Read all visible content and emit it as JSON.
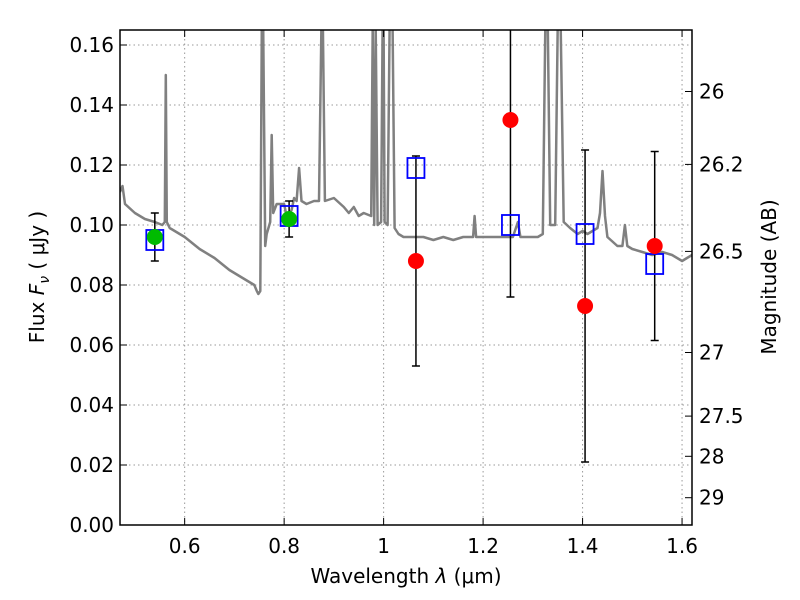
{
  "chart_data": {
    "type": "scatter",
    "xlabel_prefix": "Wavelength  ",
    "xlabel_symbol": "λ",
    "xlabel_unit": " (μm)",
    "ylabel_prefix": "Flux  ",
    "ylabel_symbol": "F",
    "ylabel_sub": "ν",
    "ylabel_unit": "  ( μJy )",
    "y2label": "Magnitude (AB)",
    "xlim": [
      0.47,
      1.62
    ],
    "ylim": [
      0.0,
      0.165
    ],
    "grid": true,
    "x_ticks": [
      {
        "value": 0.6,
        "label": "0.6"
      },
      {
        "value": 0.8,
        "label": "0.8"
      },
      {
        "value": 1.0,
        "label": "1"
      },
      {
        "value": 1.2,
        "label": "1.2"
      },
      {
        "value": 1.4,
        "label": "1.4"
      },
      {
        "value": 1.6,
        "label": "1.6"
      }
    ],
    "y_ticks": [
      {
        "value": 0.0,
        "label": "0.00"
      },
      {
        "value": 0.02,
        "label": "0.02"
      },
      {
        "value": 0.04,
        "label": "0.04"
      },
      {
        "value": 0.06,
        "label": "0.06"
      },
      {
        "value": 0.08,
        "label": "0.08"
      },
      {
        "value": 0.1,
        "label": "0.10"
      },
      {
        "value": 0.12,
        "label": "0.12"
      },
      {
        "value": 0.14,
        "label": "0.14"
      },
      {
        "value": 0.16,
        "label": "0.16"
      }
    ],
    "y2_ticks": [
      {
        "label": "26",
        "flux": 0.1445
      },
      {
        "label": "26.2",
        "flux": 0.1202
      },
      {
        "label": "26.5",
        "flux": 0.0912
      },
      {
        "label": "27",
        "flux": 0.0575
      },
      {
        "label": "27.5",
        "flux": 0.0363
      },
      {
        "label": "28",
        "flux": 0.0229
      },
      {
        "label": "29",
        "flux": 0.0091
      }
    ],
    "colors": {
      "model": "#808080",
      "model_box": "#0000ff",
      "observed_green": "#00bb00",
      "observed_red": "#ff0000",
      "errorbar": "#000000",
      "grid": "#9a9a9a"
    },
    "model_spectrum": [
      [
        0.47,
        0.111
      ],
      [
        0.475,
        0.113
      ],
      [
        0.48,
        0.107
      ],
      [
        0.5,
        0.104
      ],
      [
        0.52,
        0.102
      ],
      [
        0.54,
        0.101
      ],
      [
        0.555,
        0.1
      ],
      [
        0.56,
        0.101
      ],
      [
        0.562,
        0.15
      ],
      [
        0.564,
        0.101
      ],
      [
        0.57,
        0.099
      ],
      [
        0.6,
        0.096
      ],
      [
        0.63,
        0.092
      ],
      [
        0.66,
        0.089
      ],
      [
        0.69,
        0.085
      ],
      [
        0.72,
        0.082
      ],
      [
        0.74,
        0.08
      ],
      [
        0.745,
        0.078
      ],
      [
        0.748,
        0.077
      ],
      [
        0.752,
        0.078
      ],
      [
        0.755,
        0.166
      ],
      [
        0.758,
        0.166
      ],
      [
        0.762,
        0.093
      ],
      [
        0.765,
        0.097
      ],
      [
        0.772,
        0.101
      ],
      [
        0.775,
        0.13
      ],
      [
        0.778,
        0.104
      ],
      [
        0.785,
        0.107
      ],
      [
        0.795,
        0.107
      ],
      [
        0.8,
        0.107
      ],
      [
        0.805,
        0.103
      ],
      [
        0.81,
        0.104
      ],
      [
        0.815,
        0.105
      ],
      [
        0.82,
        0.109
      ],
      [
        0.825,
        0.108
      ],
      [
        0.83,
        0.119
      ],
      [
        0.835,
        0.108
      ],
      [
        0.845,
        0.107
      ],
      [
        0.86,
        0.108
      ],
      [
        0.87,
        0.108
      ],
      [
        0.875,
        0.166
      ],
      [
        0.878,
        0.166
      ],
      [
        0.882,
        0.108
      ],
      [
        0.9,
        0.109
      ],
      [
        0.92,
        0.106
      ],
      [
        0.93,
        0.104
      ],
      [
        0.94,
        0.106
      ],
      [
        0.95,
        0.103
      ],
      [
        0.96,
        0.104
      ],
      [
        0.975,
        0.103
      ],
      [
        0.978,
        0.166
      ],
      [
        0.981,
        0.1
      ],
      [
        0.984,
        0.166
      ],
      [
        0.988,
        0.1
      ],
      [
        0.995,
        0.101
      ],
      [
        0.998,
        0.166
      ],
      [
        1.0,
        0.166
      ],
      [
        1.002,
        0.101
      ],
      [
        1.008,
        0.1
      ],
      [
        1.012,
        0.166
      ],
      [
        1.018,
        0.166
      ],
      [
        1.022,
        0.099
      ],
      [
        1.03,
        0.097
      ],
      [
        1.04,
        0.096
      ],
      [
        1.06,
        0.096
      ],
      [
        1.08,
        0.096
      ],
      [
        1.1,
        0.095
      ],
      [
        1.12,
        0.096
      ],
      [
        1.14,
        0.095
      ],
      [
        1.16,
        0.096
      ],
      [
        1.18,
        0.096
      ],
      [
        1.183,
        0.103
      ],
      [
        1.186,
        0.096
      ],
      [
        1.2,
        0.096
      ],
      [
        1.23,
        0.096
      ],
      [
        1.25,
        0.096
      ],
      [
        1.26,
        0.096
      ],
      [
        1.27,
        0.101
      ],
      [
        1.275,
        0.096
      ],
      [
        1.29,
        0.096
      ],
      [
        1.31,
        0.096
      ],
      [
        1.32,
        0.097
      ],
      [
        1.325,
        0.166
      ],
      [
        1.33,
        0.166
      ],
      [
        1.335,
        0.1
      ],
      [
        1.345,
        0.1
      ],
      [
        1.35,
        0.166
      ],
      [
        1.356,
        0.166
      ],
      [
        1.362,
        0.101
      ],
      [
        1.375,
        0.099
      ],
      [
        1.39,
        0.097
      ],
      [
        1.4,
        0.098
      ],
      [
        1.41,
        0.097
      ],
      [
        1.43,
        0.099
      ],
      [
        1.435,
        0.104
      ],
      [
        1.44,
        0.118
      ],
      [
        1.445,
        0.103
      ],
      [
        1.45,
        0.096
      ],
      [
        1.47,
        0.093
      ],
      [
        1.48,
        0.093
      ],
      [
        1.485,
        0.1
      ],
      [
        1.49,
        0.093
      ],
      [
        1.5,
        0.092
      ],
      [
        1.52,
        0.091
      ],
      [
        1.54,
        0.09
      ],
      [
        1.56,
        0.091
      ],
      [
        1.58,
        0.09
      ],
      [
        1.6,
        0.088
      ],
      [
        1.61,
        0.089
      ],
      [
        1.62,
        0.09
      ]
    ],
    "model_points": [
      {
        "x": 0.54,
        "y": 0.095
      },
      {
        "x": 0.81,
        "y": 0.103
      },
      {
        "x": 1.065,
        "y": 0.119
      },
      {
        "x": 1.255,
        "y": 0.1
      },
      {
        "x": 1.405,
        "y": 0.097
      },
      {
        "x": 1.545,
        "y": 0.087
      }
    ],
    "observed_points": [
      {
        "x": 0.54,
        "y": 0.096,
        "err": 0.008,
        "color": "green"
      },
      {
        "x": 0.81,
        "y": 0.102,
        "err": 0.006,
        "color": "green"
      },
      {
        "x": 1.065,
        "y": 0.088,
        "err": 0.035,
        "color": "red"
      },
      {
        "x": 1.255,
        "y": 0.135,
        "err": 0.059,
        "color": "red"
      },
      {
        "x": 1.405,
        "y": 0.073,
        "err": 0.052,
        "color": "red"
      },
      {
        "x": 1.545,
        "y": 0.093,
        "err": 0.0315,
        "color": "red"
      }
    ]
  }
}
